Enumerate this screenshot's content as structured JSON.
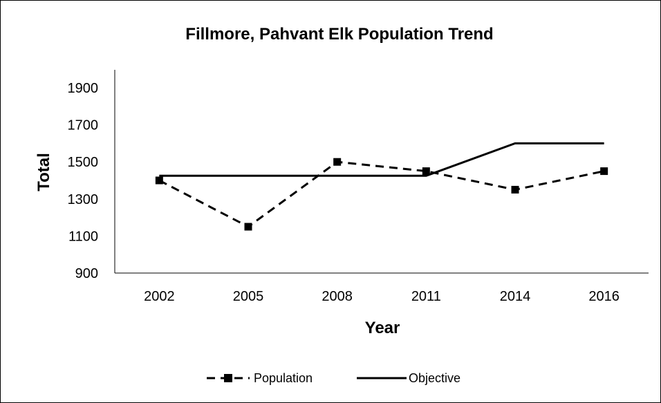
{
  "chart_data": {
    "type": "line",
    "title": "Fillmore, Pahvant Elk Population Trend",
    "xlabel": "Year",
    "ylabel": "Total",
    "categories": [
      "2002",
      "2005",
      "2008",
      "2011",
      "2014",
      "2016"
    ],
    "ylim": [
      900,
      1900
    ],
    "yticks": [
      900,
      1100,
      1300,
      1500,
      1700,
      1900
    ],
    "grid": false,
    "legend_position": "bottom",
    "series": [
      {
        "name": "Population",
        "values": [
          1400,
          1150,
          1500,
          1450,
          1350,
          1450
        ],
        "style": "dashed",
        "marker": "square",
        "color": "#000000"
      },
      {
        "name": "Objective",
        "values": [
          1425,
          1425,
          1425,
          1425,
          1600,
          1600
        ],
        "style": "solid",
        "marker": "none",
        "color": "#000000"
      }
    ]
  }
}
